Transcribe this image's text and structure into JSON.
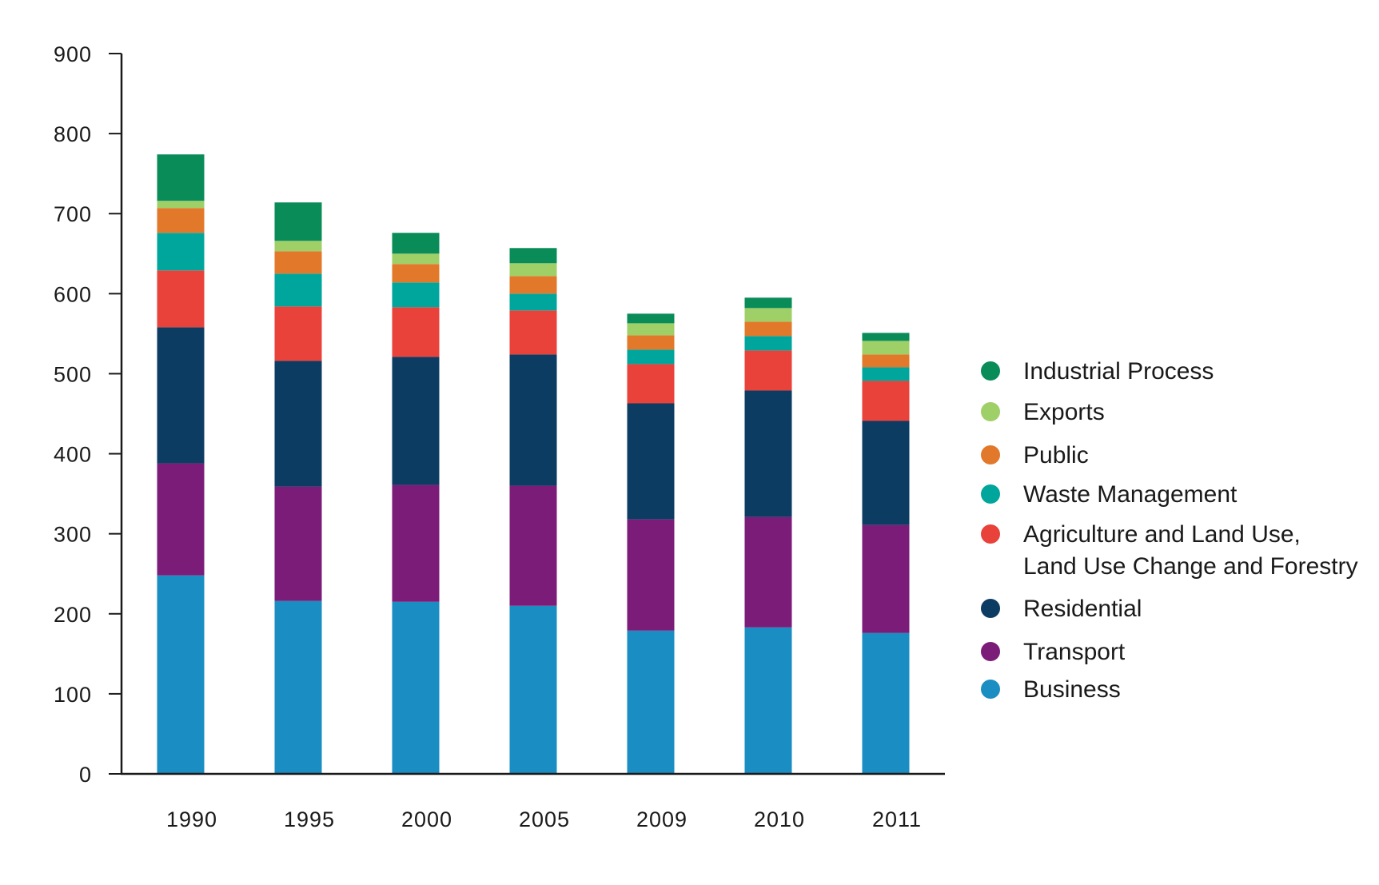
{
  "chart_data": {
    "type": "bar",
    "stacked": true,
    "title": "",
    "xlabel": "",
    "ylabel": "",
    "categories": [
      "1990",
      "1995",
      "2000",
      "2005",
      "2009",
      "2010",
      "2011"
    ],
    "ylim": [
      0,
      900
    ],
    "yticks": [
      "0",
      "100",
      "200",
      "300",
      "400",
      "500",
      "600",
      "700",
      "800",
      "900"
    ],
    "grid": false,
    "legend_position": "right",
    "series": [
      {
        "name": "Business",
        "color": "#1a8dc3",
        "values": [
          248,
          216,
          215,
          210,
          179,
          183,
          176
        ]
      },
      {
        "name": "Transport",
        "color": "#7b1c78",
        "values": [
          140,
          143,
          146,
          150,
          139,
          138,
          135
        ]
      },
      {
        "name": "Residential",
        "color": "#0d3c63",
        "values": [
          170,
          157,
          160,
          164,
          145,
          158,
          130
        ]
      },
      {
        "name": "Agriculture and Land Use, Land Use Change and Forestry",
        "legend_lines": [
          "Agriculture and Land Use,",
          "Land Use Change and Forestry"
        ],
        "color": "#e8423a",
        "values": [
          71,
          68,
          62,
          55,
          49,
          50,
          50
        ]
      },
      {
        "name": "Waste Management",
        "color": "#00a69c",
        "values": [
          47,
          41,
          31,
          21,
          18,
          18,
          17
        ]
      },
      {
        "name": "Public",
        "color": "#e2782a",
        "values": [
          31,
          28,
          23,
          22,
          18,
          18,
          16
        ]
      },
      {
        "name": "Exports",
        "color": "#9fcf67",
        "values": [
          9,
          13,
          13,
          16,
          15,
          17,
          17
        ]
      },
      {
        "name": "Industrial Process",
        "color": "#0a8c59",
        "values": [
          58,
          48,
          26,
          19,
          12,
          13,
          10
        ]
      }
    ],
    "legend_order": [
      "Industrial Process",
      "Exports",
      "Public",
      "Waste Management",
      "Agriculture and Land Use, Land Use Change and Forestry",
      "Residential",
      "Transport",
      "Business"
    ]
  }
}
